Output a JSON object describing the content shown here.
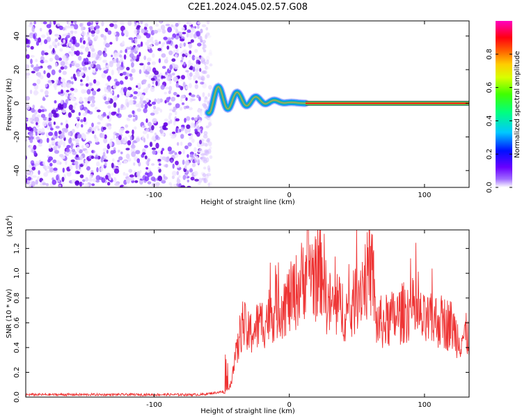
{
  "title": "C2E1.2024.045.02.57.G08",
  "chart_data": [
    {
      "type": "heatmap",
      "name": "spectrogram",
      "xlabel": "Height of straight line (km)",
      "ylabel": "Frequency (Hz)",
      "xlim": [
        -195,
        133
      ],
      "ylim": [
        -50,
        49
      ],
      "xticks": [
        -100,
        0,
        100
      ],
      "yticks": [
        -40,
        -20,
        0,
        20,
        40
      ],
      "noise_region_x": [
        -195,
        -60
      ],
      "transition_region_x": [
        -60,
        12
      ],
      "tone_frequency": 0,
      "tone_region_x": [
        12,
        133
      ],
      "colorbar": {
        "label": "Normalized spectral amplitude",
        "range": [
          0.0,
          1.0
        ],
        "ticks": [
          0.0,
          0.2,
          0.4,
          0.6,
          0.8
        ],
        "tick_labels": [
          "0.0",
          "0.2",
          "0.4",
          "0.6",
          "0.8"
        ],
        "colors": [
          "#ffffff",
          "#7a00ff",
          "#0000ff",
          "#00c8ff",
          "#00ff50",
          "#c8ff00",
          "#ffff00",
          "#ff8c00",
          "#ff0000",
          "#ff00aa"
        ]
      }
    },
    {
      "type": "line",
      "name": "snr",
      "xlabel": "Height of straight line (km)",
      "ylabel": "SNR (10 * v/v)",
      "multiplier_label": "(x10",
      "multiplier_exp": "4",
      "multiplier_close": ")",
      "xlim": [
        -195,
        133
      ],
      "ylim": [
        0,
        1.35
      ],
      "xticks": [
        -100,
        0,
        100
      ],
      "yticks": [
        0.0,
        0.2,
        0.4,
        0.6,
        0.8,
        1.0,
        1.2
      ],
      "ytick_labels": [
        "0.0",
        "0.2",
        "0.4",
        "0.6",
        "0.8",
        "1.0",
        "1.2"
      ],
      "color": "#ee3333",
      "series": [
        {
          "name": "SNR",
          "x": [
            -195,
            -100,
            -65,
            -45,
            -42,
            -38,
            -35,
            -30,
            -26,
            -20,
            -10,
            0,
            5,
            10,
            14,
            17,
            20,
            25,
            28,
            30,
            35,
            40,
            45,
            50,
            55,
            60,
            62,
            64,
            70,
            80,
            90,
            100,
            110,
            120,
            125,
            133
          ],
          "y": [
            0.02,
            0.02,
            0.02,
            0.05,
            0.2,
            0.4,
            0.6,
            0.5,
            0.55,
            0.6,
            0.72,
            0.78,
            0.85,
            0.95,
            1.1,
            1.0,
            0.95,
            1.05,
            0.75,
            0.75,
            0.72,
            0.72,
            0.65,
            0.85,
            0.95,
            1.0,
            0.98,
            0.6,
            0.6,
            0.65,
            0.72,
            0.6,
            0.62,
            0.58,
            0.48,
            0.5
          ]
        }
      ]
    }
  ]
}
